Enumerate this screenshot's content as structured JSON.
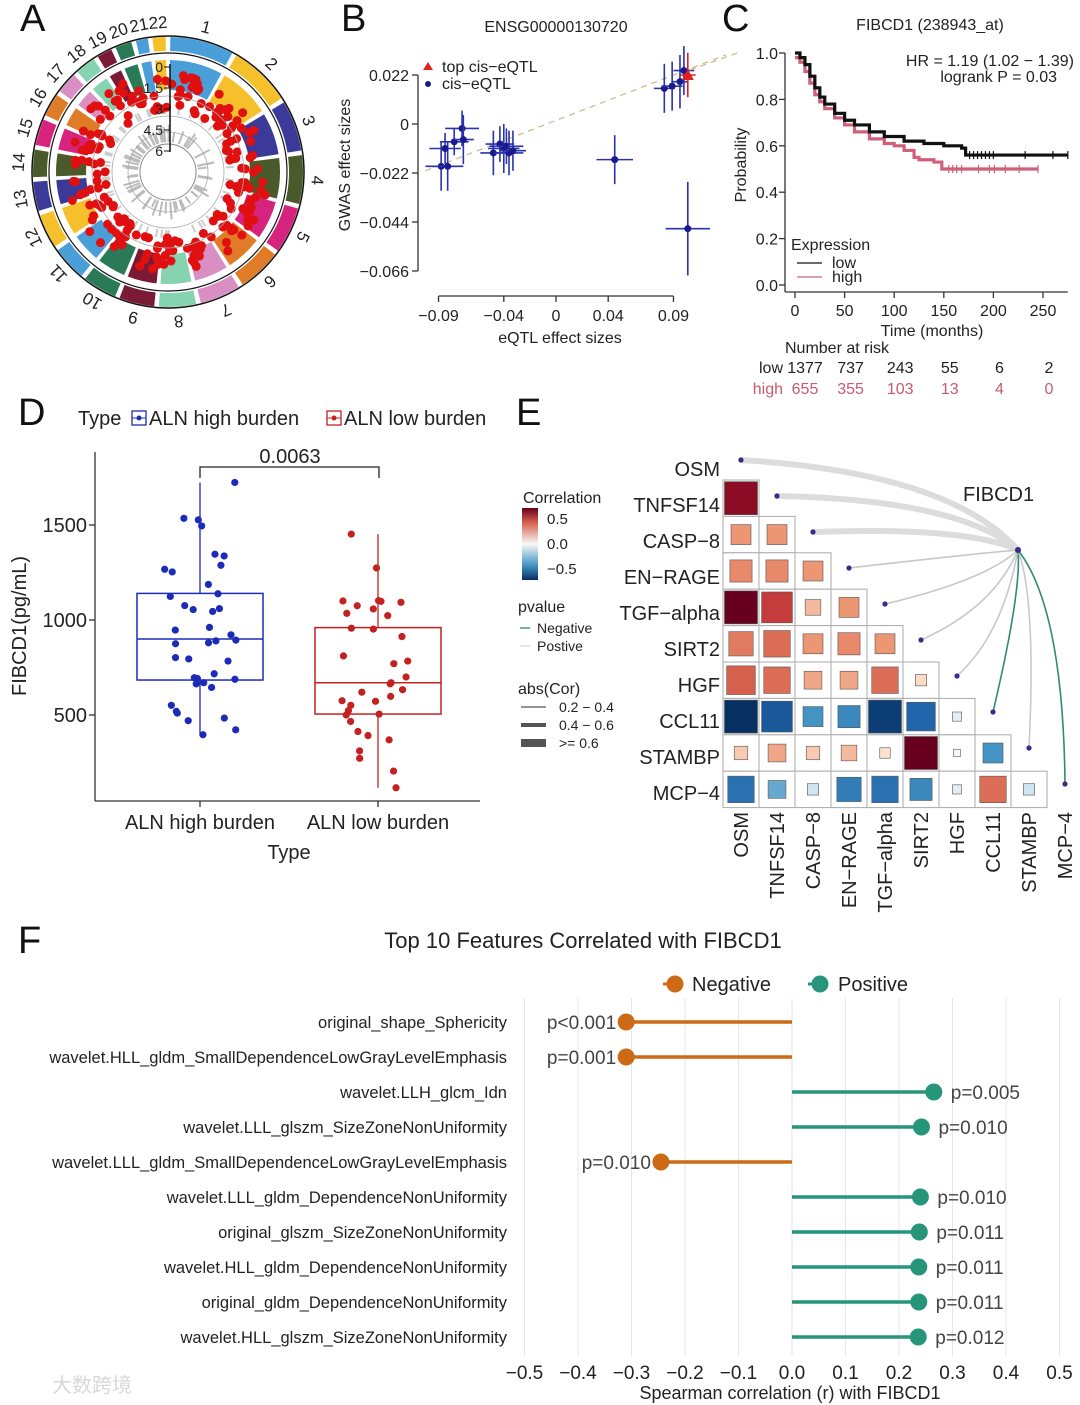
{
  "panel_labels": [
    "A",
    "B",
    "C",
    "D",
    "E",
    "F"
  ],
  "watermark": "大数跨境",
  "chart_data": [
    {
      "id": "A",
      "type": "circos",
      "chromosomes": [
        "1",
        "2",
        "3",
        "4",
        "5",
        "6",
        "7",
        "8",
        "9",
        "10",
        "11",
        "12",
        "13",
        "14",
        "15",
        "16",
        "17",
        "18",
        "19",
        "20",
        "21",
        "22"
      ],
      "chromosome_sizes": [
        249,
        242,
        198,
        190,
        181,
        171,
        159,
        145,
        138,
        134,
        135,
        133,
        114,
        107,
        102,
        90,
        83,
        80,
        59,
        64,
        47,
        51
      ],
      "chromosome_colors": [
        "#4a9fd8",
        "#f6c02c",
        "#3b3a98",
        "#4b5a2a",
        "#d6247e",
        "#e07b28",
        "#d98fc4",
        "#86d3b2",
        "#7a1a35",
        "#2a7a58",
        "#4a9fd8",
        "#f6c02c",
        "#3b3a98",
        "#4b5a2a",
        "#d6247e",
        "#e07b28",
        "#d98fc4",
        "#86d3b2",
        "#7a1a35",
        "#2a7a58",
        "#4a9fd8",
        "#f6c02c"
      ],
      "radial_ticks": [
        "0",
        "1.5",
        "3",
        "4.5",
        "6"
      ],
      "highlight_color": "#e01010"
    },
    {
      "id": "B",
      "type": "scatter",
      "title": "ENSG00000130720",
      "xlabel": "eQTL effect sizes",
      "ylabel": "GWAS effect sizes",
      "xticks": [
        -0.09,
        -0.04,
        0,
        0.04,
        0.09
      ],
      "xtick_labels": [
        "−0.09",
        "−0.04",
        "0",
        "0.04",
        "0.09"
      ],
      "yticks": [
        0.022,
        0,
        -0.022,
        -0.044,
        -0.066
      ],
      "ytick_labels": [
        "0.022",
        "0",
        "−0.022",
        "−0.044",
        "−0.066"
      ],
      "legend": [
        {
          "label": "top cis−eQTL",
          "color": "#e02020"
        },
        {
          "label": "cis−eQTL",
          "color": "#1a1a8c"
        }
      ],
      "points": [
        {
          "x": -0.088,
          "y": -0.019,
          "xerr": 0.012,
          "yerr": 0.011
        },
        {
          "x": -0.083,
          "y": -0.019,
          "xerr": 0.012,
          "yerr": 0.011
        },
        {
          "x": -0.085,
          "y": -0.011,
          "xerr": 0.012,
          "yerr": 0.007
        },
        {
          "x": -0.078,
          "y": -0.008,
          "xerr": 0.011,
          "yerr": 0.006
        },
        {
          "x": -0.072,
          "y": -0.002,
          "xerr": 0.013,
          "yerr": 0.008
        },
        {
          "x": -0.071,
          "y": -0.007,
          "xerr": 0.008,
          "yerr": 0.011
        },
        {
          "x": -0.048,
          "y": -0.013,
          "xerr": 0.01,
          "yerr": 0.01
        },
        {
          "x": -0.043,
          "y": -0.009,
          "xerr": 0.011,
          "yerr": 0.008
        },
        {
          "x": -0.04,
          "y": -0.011,
          "xerr": 0.012,
          "yerr": 0.011
        },
        {
          "x": -0.038,
          "y": -0.01,
          "xerr": 0.013,
          "yerr": 0.008
        },
        {
          "x": -0.036,
          "y": -0.013,
          "xerr": 0.011,
          "yerr": 0.01
        },
        {
          "x": -0.033,
          "y": -0.012,
          "xerr": 0.01,
          "yerr": 0.009
        },
        {
          "x": 0.045,
          "y": -0.016,
          "xerr": 0.014,
          "yerr": 0.011
        },
        {
          "x": 0.083,
          "y": 0.016,
          "xerr": 0.008,
          "yerr": 0.011
        },
        {
          "x": 0.089,
          "y": 0.017,
          "xerr": 0.008,
          "yerr": 0.011
        },
        {
          "x": 0.095,
          "y": 0.019,
          "xerr": 0.006,
          "yerr": 0.012
        },
        {
          "x": 0.098,
          "y": 0.024,
          "xerr": 0.008,
          "yerr": 0.011
        },
        {
          "x": 0.101,
          "y": -0.047,
          "xerr": 0.017,
          "yerr": 0.021
        },
        {
          "x": 0.101,
          "y": 0.022,
          "xerr": 0.006,
          "yerr": 0.01,
          "top": true
        }
      ],
      "trend_line": [
        [
          -0.1,
          -0.021
        ],
        [
          0.13,
          0.031
        ]
      ]
    },
    {
      "id": "C",
      "type": "line",
      "title": "FIBCD1 (238943_at)",
      "hr_text": "HR = 1.19 (1.02 − 1.39)",
      "logrank_text": "logrank P = 0.03",
      "xlabel": "Time (months)",
      "ylabel": "Probability",
      "xticks": [
        0,
        50,
        100,
        150,
        200,
        250
      ],
      "yticks": [
        0.0,
        0.2,
        0.4,
        0.6,
        0.8,
        1.0
      ],
      "ytick_labels": [
        "0.0",
        "0.2",
        "0.4",
        "0.6",
        "0.8",
        "1.0"
      ],
      "legend_title": "Expression",
      "series": [
        {
          "name": "low",
          "color": "#111111",
          "points": [
            [
              0,
              1
            ],
            [
              5,
              0.98
            ],
            [
              10,
              0.95
            ],
            [
              15,
              0.9
            ],
            [
              20,
              0.85
            ],
            [
              25,
              0.81
            ],
            [
              30,
              0.78
            ],
            [
              40,
              0.74
            ],
            [
              50,
              0.71
            ],
            [
              60,
              0.69
            ],
            [
              75,
              0.66
            ],
            [
              90,
              0.64
            ],
            [
              110,
              0.62
            ],
            [
              130,
              0.61
            ],
            [
              150,
              0.6
            ],
            [
              168,
              0.59
            ],
            [
              172,
              0.56
            ],
            [
              275,
              0.56
            ]
          ],
          "censored": [
            176,
            180,
            184,
            188,
            192,
            196,
            200,
            232,
            260,
            275
          ]
        },
        {
          "name": "high",
          "color": "#d0607a",
          "points": [
            [
              0,
              0.98
            ],
            [
              5,
              0.96
            ],
            [
              10,
              0.92
            ],
            [
              15,
              0.87
            ],
            [
              20,
              0.82
            ],
            [
              25,
              0.79
            ],
            [
              30,
              0.76
            ],
            [
              40,
              0.72
            ],
            [
              50,
              0.69
            ],
            [
              60,
              0.66
            ],
            [
              75,
              0.63
            ],
            [
              90,
              0.61
            ],
            [
              100,
              0.6
            ],
            [
              110,
              0.58
            ],
            [
              120,
              0.55
            ],
            [
              125,
              0.54
            ],
            [
              140,
              0.53
            ],
            [
              148,
              0.5
            ],
            [
              245,
              0.5
            ]
          ],
          "censored": [
            155,
            159,
            163,
            168,
            185,
            196,
            201,
            212,
            226,
            245
          ]
        }
      ],
      "risk_table": {
        "title": "Number at risk",
        "rows": [
          {
            "name": "low",
            "color": "#222222",
            "values": [
              "1377",
              "737",
              "243",
              "55",
              "6",
              "2"
            ]
          },
          {
            "name": "high",
            "color": "#c85a70",
            "values": [
              "655",
              "355",
              "103",
              "13",
              "4",
              "0"
            ]
          }
        ]
      }
    },
    {
      "id": "D",
      "type": "box",
      "legend_title": "Type",
      "xlabel": "Type",
      "ylabel": "FIBCD1(pg/mL)",
      "yticks": [
        500,
        1000,
        1500
      ],
      "p_value": "0.0063",
      "groups": [
        {
          "name": "ALN high burden",
          "color": "#1c2bb8",
          "q1": 684,
          "median": 900,
          "q3": 1140,
          "whisker_low": 396,
          "whisker_high": 1724,
          "values": [
            1724,
            1527,
            1535,
            1495,
            1337,
            1346,
            1288,
            1267,
            1253,
            1187,
            1138,
            1124,
            1076,
            1055,
            1060,
            1045,
            961,
            947,
            922,
            894,
            880,
            890,
            875,
            784,
            802,
            795,
            717,
            696,
            692,
            688,
            664,
            670,
            645,
            551,
            519,
            510,
            484,
            470,
            422,
            396
          ]
        },
        {
          "name": "ALN low burden",
          "color": "#c42121",
          "q1": 505,
          "median": 670,
          "q3": 960,
          "whisker_low": 117,
          "whisker_high": 1452,
          "values": [
            1452,
            1274,
            1102,
            1100,
            1098,
            1093,
            1058,
            1075,
            1035,
            1023,
            952,
            957,
            913,
            811,
            784,
            770,
            700,
            664,
            670,
            633,
            620,
            598,
            572,
            575,
            551,
            523,
            500,
            505,
            466,
            413,
            392,
            369,
            311,
            272,
            205,
            117
          ]
        }
      ]
    },
    {
      "id": "E",
      "type": "heatmap",
      "labels": [
        "OSM",
        "TNFSF14",
        "CASP−8",
        "EN−RAGE",
        "TGF−alpha",
        "SIRT2",
        "HGF",
        "CCL11",
        "STAMBP",
        "MCP−4"
      ],
      "lower_triangle": [
        [],
        [
          0.65
        ],
        [
          0.3,
          0.3
        ],
        [
          0.35,
          0.35,
          0.3
        ],
        [
          0.7,
          0.55,
          0.2,
          0.3
        ],
        [
          0.4,
          0.45,
          0.3,
          0.35,
          0.3
        ],
        [
          0.5,
          0.45,
          0.25,
          0.25,
          0.45,
          0.1
        ],
        [
          -0.7,
          -0.55,
          -0.3,
          -0.35,
          -0.65,
          -0.5,
          -0.05
        ],
        [
          0.15,
          0.25,
          0.15,
          0.2,
          0.08,
          0.7,
          0.0,
          -0.3
        ],
        [
          -0.45,
          -0.25,
          -0.1,
          -0.4,
          -0.45,
          -0.35,
          -0.05,
          0.45,
          -0.1
        ]
      ],
      "target": "FIBCD1",
      "links": [
        {
          "to": "OSM",
          "abs_cor": "0.4 − 0.6",
          "pvalue": "Postive"
        },
        {
          "to": "TNFSF14",
          "abs_cor": "0.4 − 0.6",
          "pvalue": "Postive"
        },
        {
          "to": "CASP−8",
          "abs_cor": "0.4 − 0.6",
          "pvalue": "Postive"
        },
        {
          "to": "EN−RAGE",
          "abs_cor": "0.2 − 0.4",
          "pvalue": "Postive"
        },
        {
          "to": "TGF−alpha",
          "abs_cor": "0.2 − 0.4",
          "pvalue": "Postive"
        },
        {
          "to": "SIRT2",
          "abs_cor": "0.2 − 0.4",
          "pvalue": "Postive"
        },
        {
          "to": "HGF",
          "abs_cor": "0.2 − 0.4",
          "pvalue": "Postive"
        },
        {
          "to": "CCL11",
          "abs_cor": "0.2 − 0.4",
          "pvalue": "Negative"
        },
        {
          "to": "STAMBP",
          "abs_cor": "0.2 − 0.4",
          "pvalue": "Postive"
        },
        {
          "to": "MCP−4",
          "abs_cor": "0.2 − 0.4",
          "pvalue": "Negative"
        }
      ],
      "legend": {
        "correlation_title": "Correlation",
        "correlation_ticks": [
          "0.5",
          "0.0",
          "−0.5"
        ],
        "pvalue_title": "pvalue",
        "pvalue_items": [
          "Negative",
          "Postive"
        ],
        "pvalue_colors": {
          "Negative": "#2e8b74",
          "Postive": "#d9d9d9"
        },
        "abs_title": "abs(Cor)",
        "abs_items": [
          "0.2 − 0.4",
          "0.4 − 0.6",
          ">= 0.6"
        ]
      }
    },
    {
      "id": "F",
      "type": "lollipop",
      "title": "Top 10 Features Correlated with FIBCD1",
      "xlabel": "Spearman correlation (r) with FIBCD1",
      "xlim": [
        -0.5,
        0.5
      ],
      "xticks": [
        "-0.5",
        "-0.4",
        "-0.3",
        "-0.2",
        "-0.1",
        "0.0",
        "0.1",
        "0.2",
        "0.3",
        "0.4",
        "0.5"
      ],
      "legend": [
        {
          "label": "Negative",
          "color": "#cc6a15"
        },
        {
          "label": "Positive",
          "color": "#26957a"
        }
      ],
      "features": [
        {
          "name": "original_shape_Sphericity",
          "r": -0.31,
          "p": "p<0.001"
        },
        {
          "name": "wavelet.HLL_gldm_SmallDependenceLowGrayLevelEmphasis",
          "r": -0.31,
          "p": "p=0.001"
        },
        {
          "name": "wavelet.LLH_glcm_Idn",
          "r": 0.265,
          "p": "p=0.005"
        },
        {
          "name": "wavelet.LLL_glszm_SizeZoneNonUniformity",
          "r": 0.242,
          "p": "p=0.010"
        },
        {
          "name": "wavelet.LLL_gldm_SmallDependenceLowGrayLevelEmphasis",
          "r": -0.245,
          "p": "p=0.010"
        },
        {
          "name": "wavelet.LLL_gldm_DependenceNonUniformity",
          "r": 0.24,
          "p": "p=0.010"
        },
        {
          "name": "original_glszm_SizeZoneNonUniformity",
          "r": 0.238,
          "p": "p=0.011"
        },
        {
          "name": "wavelet.HLL_gldm_DependenceNonUniformity",
          "r": 0.237,
          "p": "p=0.011"
        },
        {
          "name": "original_gldm_DependenceNonUniformity",
          "r": 0.237,
          "p": "p=0.011"
        },
        {
          "name": "wavelet.HLL_glszm_SizeZoneNonUniformity",
          "r": 0.236,
          "p": "p=0.012"
        }
      ]
    }
  ]
}
